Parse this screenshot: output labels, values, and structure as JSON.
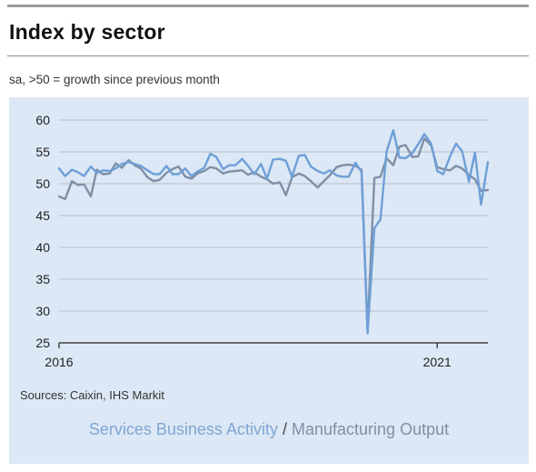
{
  "title": "Index by sector",
  "subtitle": "sa, >50 = growth since previous month",
  "source": "Sources: Caixin, IHS Markit",
  "legend": {
    "services": "Services Business Activity",
    "separator": "/",
    "manufacturing": "Manufacturing Output"
  },
  "colors": {
    "panel": "#dce8f5",
    "services": "#6f9fd8",
    "manufacturing": "#7f8fa6",
    "grid": "#b9bec6"
  },
  "chart_data": {
    "type": "line",
    "ylim": [
      25,
      60
    ],
    "yticks": [
      25,
      30,
      35,
      40,
      45,
      50,
      55,
      60
    ],
    "xlim": [
      2016.0,
      2021.67
    ],
    "xticks": [
      {
        "value": 2016,
        "label": "2016"
      },
      {
        "value": 2021,
        "label": "2021"
      }
    ],
    "grid": true,
    "series": [
      {
        "name": "Services Business Activity",
        "x": [
          2016.0,
          2016.08,
          2016.17,
          2016.25,
          2016.33,
          2016.42,
          2016.5,
          2016.58,
          2016.67,
          2016.75,
          2016.83,
          2016.92,
          2017.0,
          2017.08,
          2017.17,
          2017.25,
          2017.33,
          2017.42,
          2017.5,
          2017.58,
          2017.67,
          2017.75,
          2017.83,
          2017.92,
          2018.0,
          2018.08,
          2018.17,
          2018.25,
          2018.33,
          2018.42,
          2018.5,
          2018.58,
          2018.67,
          2018.75,
          2018.83,
          2018.92,
          2019.0,
          2019.08,
          2019.17,
          2019.25,
          2019.33,
          2019.42,
          2019.5,
          2019.58,
          2019.67,
          2019.75,
          2019.83,
          2019.92,
          2020.0,
          2020.08,
          2020.17,
          2020.25,
          2020.33,
          2020.42,
          2020.5,
          2020.58,
          2020.67,
          2020.75,
          2020.83,
          2020.92,
          2021.0,
          2021.08,
          2021.17,
          2021.25,
          2021.33,
          2021.42,
          2021.5,
          2021.58,
          2021.67
        ],
        "values": [
          52.4,
          51.2,
          52.2,
          51.8,
          51.2,
          52.7,
          51.7,
          52.1,
          52.0,
          52.4,
          53.1,
          53.4,
          53.1,
          52.8,
          52.1,
          51.5,
          51.5,
          52.8,
          51.5,
          51.5,
          52.4,
          51.2,
          51.9,
          52.5,
          54.7,
          54.2,
          52.3,
          52.9,
          52.9,
          53.9,
          52.8,
          51.5,
          53.1,
          50.8,
          53.8,
          53.9,
          53.6,
          51.1,
          54.4,
          54.5,
          52.7,
          52.0,
          51.6,
          52.1,
          51.3,
          51.1,
          51.1,
          53.3,
          51.8,
          26.5,
          43.0,
          44.4,
          55.0,
          58.4,
          54.1,
          54.0,
          54.8,
          56.2,
          57.8,
          56.3,
          52.0,
          51.5,
          54.3,
          56.3,
          55.1,
          50.3,
          54.9,
          46.7,
          53.4
        ]
      },
      {
        "name": "Manufacturing Output",
        "x": [
          2016.0,
          2016.08,
          2016.17,
          2016.25,
          2016.33,
          2016.42,
          2016.5,
          2016.58,
          2016.67,
          2016.75,
          2016.83,
          2016.92,
          2017.0,
          2017.08,
          2017.17,
          2017.25,
          2017.33,
          2017.42,
          2017.5,
          2017.58,
          2017.67,
          2017.75,
          2017.83,
          2017.92,
          2018.0,
          2018.08,
          2018.17,
          2018.25,
          2018.33,
          2018.42,
          2018.5,
          2018.58,
          2018.67,
          2018.75,
          2018.83,
          2018.92,
          2019.0,
          2019.08,
          2019.17,
          2019.25,
          2019.33,
          2019.42,
          2019.5,
          2019.58,
          2019.67,
          2019.75,
          2019.83,
          2019.92,
          2020.0,
          2020.08,
          2020.17,
          2020.25,
          2020.33,
          2020.42,
          2020.5,
          2020.58,
          2020.67,
          2020.75,
          2020.83,
          2020.92,
          2021.0,
          2021.08,
          2021.17,
          2021.25,
          2021.33,
          2021.42,
          2021.5,
          2021.58,
          2021.67
        ],
        "values": [
          48.0,
          47.6,
          50.4,
          49.8,
          49.9,
          48.0,
          52.2,
          51.5,
          51.6,
          53.2,
          52.5,
          53.7,
          52.9,
          52.4,
          51.0,
          50.4,
          50.6,
          51.7,
          52.3,
          52.7,
          51.1,
          50.8,
          51.6,
          52.0,
          52.6,
          52.4,
          51.6,
          51.9,
          52.0,
          52.1,
          51.4,
          51.8,
          51.1,
          50.7,
          50.0,
          50.2,
          48.2,
          51.0,
          51.6,
          51.2,
          50.4,
          49.4,
          50.4,
          51.3,
          52.6,
          52.9,
          53.0,
          52.8,
          52.2,
          27.0,
          50.9,
          51.1,
          54.0,
          52.9,
          55.8,
          56.1,
          54.2,
          54.3,
          57.1,
          56.0,
          52.6,
          52.3,
          52.1,
          52.8,
          52.4,
          51.4,
          50.7,
          48.9,
          49.0
        ]
      }
    ]
  }
}
